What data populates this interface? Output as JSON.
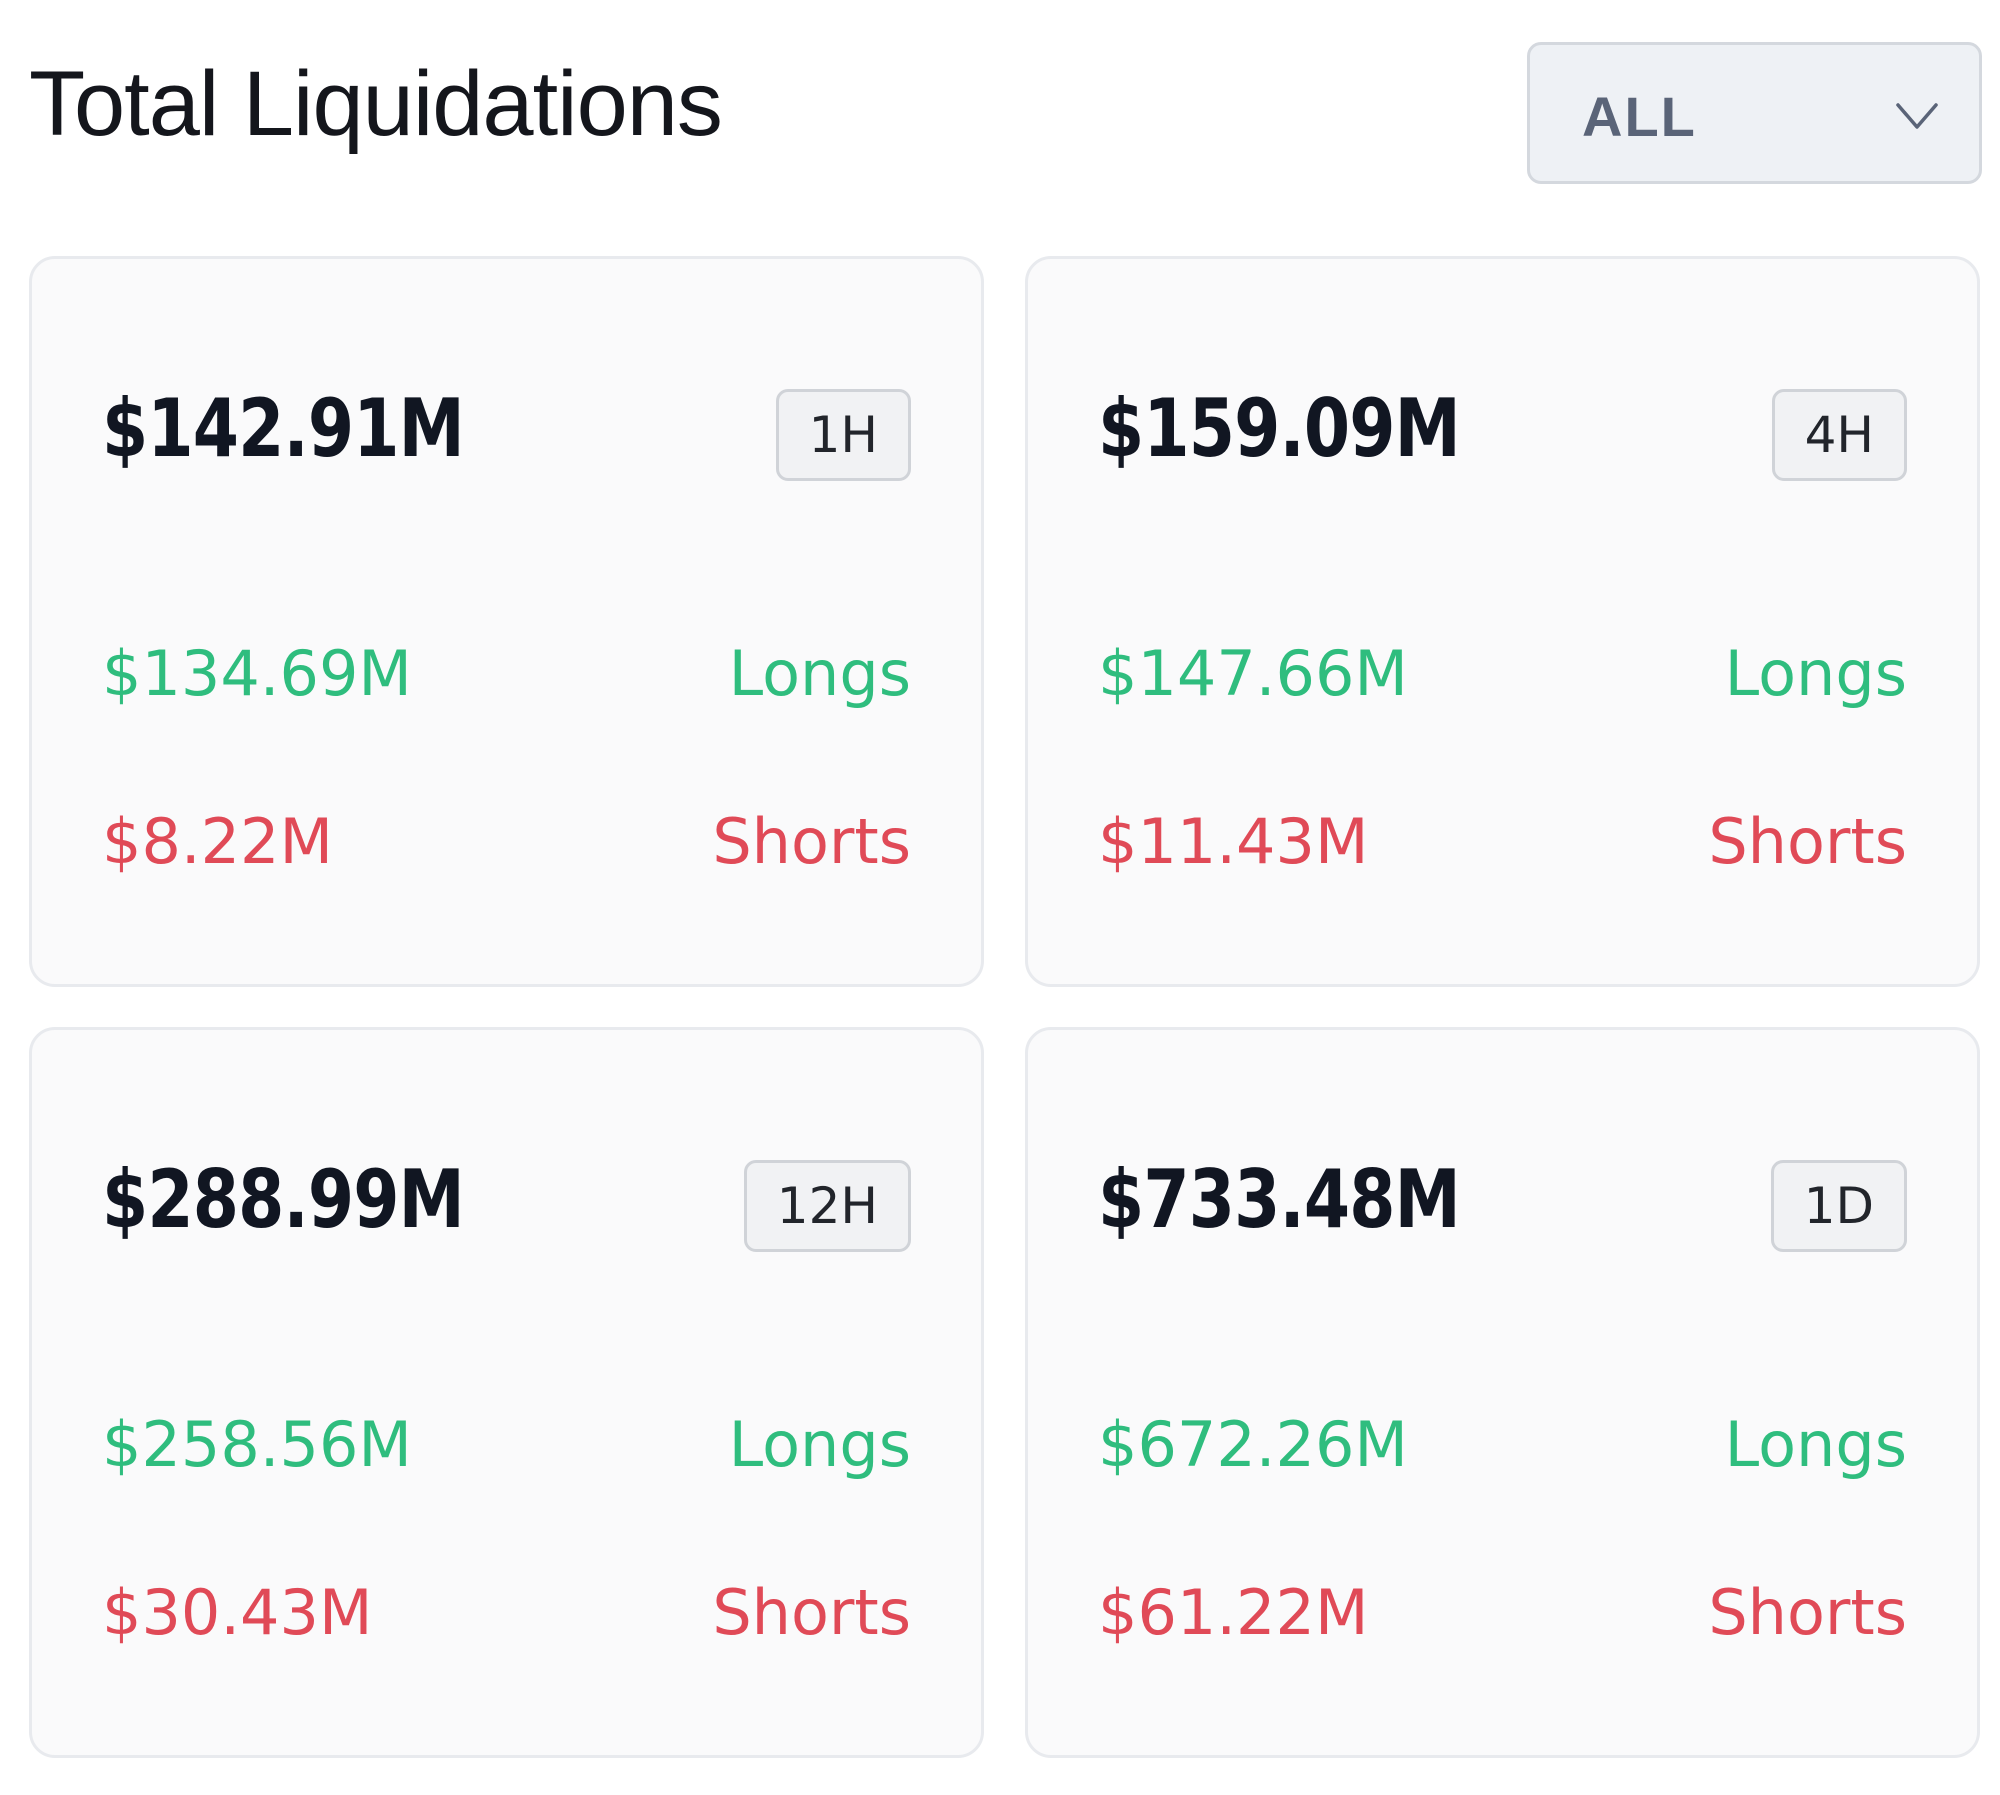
{
  "header": {
    "title": "Total Liquidations",
    "filter": {
      "selected": "ALL",
      "icon": "chevron-down-icon"
    }
  },
  "cards": [
    {
      "total": "$142.91M",
      "period": "1H",
      "longs_value": "$134.69M",
      "longs_label": "Longs",
      "shorts_value": "$8.22M",
      "shorts_label": "Shorts"
    },
    {
      "total": "$159.09M",
      "period": "4H",
      "longs_value": "$147.66M",
      "longs_label": "Longs",
      "shorts_value": "$11.43M",
      "shorts_label": "Shorts"
    },
    {
      "total": "$288.99M",
      "period": "12H",
      "longs_value": "$258.56M",
      "longs_label": "Longs",
      "shorts_value": "$30.43M",
      "shorts_label": "Shorts"
    },
    {
      "total": "$733.48M",
      "period": "1D",
      "longs_value": "$672.26M",
      "longs_label": "Longs",
      "shorts_value": "$61.22M",
      "shorts_label": "Shorts"
    }
  ],
  "colors": {
    "longs": "#2fbd7e",
    "shorts": "#e04a57",
    "card_background": "#fafafb",
    "dropdown_background": "#eef1f5"
  }
}
